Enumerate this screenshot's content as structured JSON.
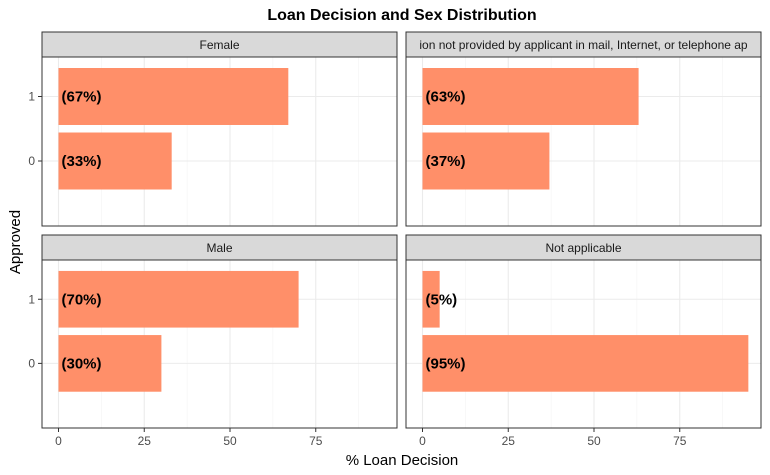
{
  "chart_data": {
    "type": "bar",
    "orientation": "horizontal",
    "title": "Loan Decision and Sex Distribution",
    "xlabel": "% Loan Decision",
    "ylabel": "Approved",
    "xlim": [
      0,
      100
    ],
    "x_ticks": [
      0,
      25,
      50,
      75
    ],
    "categories": [
      "1",
      "0"
    ],
    "bar_color": "#FF8F69",
    "grid": true,
    "facets": [
      {
        "label": "Female",
        "values": {
          "1": 67,
          "0": 33
        },
        "labels": {
          "1": "(67%)",
          "0": "(33%)"
        }
      },
      {
        "label": "ion not provided by applicant in mail, Internet, or telephone ap",
        "values": {
          "1": 63,
          "0": 37
        },
        "labels": {
          "1": "(63%)",
          "0": "(37%)"
        }
      },
      {
        "label": "Male",
        "values": {
          "1": 70,
          "0": 30
        },
        "labels": {
          "1": "(70%)",
          "0": "(30%)"
        }
      },
      {
        "label": "Not applicable",
        "values": {
          "1": 5,
          "0": 95
        },
        "labels": {
          "1": "(5%)",
          "0": "(95%)"
        }
      }
    ]
  }
}
